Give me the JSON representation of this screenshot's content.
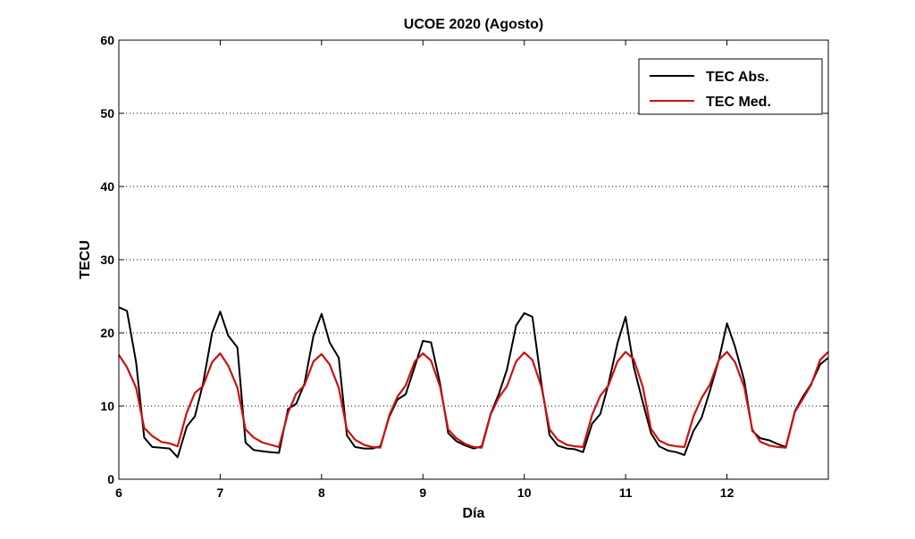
{
  "chart_data": {
    "type": "line",
    "title": "UCOE 2020 (Agosto)",
    "xlabel": "Día",
    "ylabel": "TECU",
    "xlim": [
      6,
      13
    ],
    "ylim": [
      0,
      60
    ],
    "xticks": [
      6,
      7,
      8,
      9,
      10,
      11,
      12
    ],
    "yticks": [
      0,
      10,
      20,
      30,
      40,
      50,
      60
    ],
    "grid": "horizontal dotted",
    "legend_position": "top-right",
    "series": [
      {
        "name": "TEC Abs.",
        "color": "#000000",
        "x": [
          6.0,
          6.08,
          6.17,
          6.25,
          6.33,
          6.42,
          6.5,
          6.58,
          6.67,
          6.75,
          6.83,
          6.92,
          7.0,
          7.08,
          7.17,
          7.25,
          7.33,
          7.42,
          7.5,
          7.58,
          7.67,
          7.75,
          7.83,
          7.92,
          8.0,
          8.08,
          8.17,
          8.25,
          8.33,
          8.42,
          8.5,
          8.58,
          8.67,
          8.75,
          8.83,
          8.92,
          9.0,
          9.08,
          9.17,
          9.25,
          9.33,
          9.42,
          9.5,
          9.58,
          9.67,
          9.75,
          9.83,
          9.92,
          10.0,
          10.08,
          10.17,
          10.25,
          10.33,
          10.42,
          10.5,
          10.58,
          10.67,
          10.75,
          10.83,
          10.92,
          11.0,
          11.08,
          11.17,
          11.25,
          11.33,
          11.42,
          11.5,
          11.58,
          11.67,
          11.75,
          11.83,
          11.92,
          12.0,
          12.08,
          12.17,
          12.25,
          12.33,
          12.42,
          12.5,
          12.58,
          12.67,
          12.75,
          12.83,
          12.92,
          13.0
        ],
        "y": [
          23.5,
          23.0,
          16.0,
          5.7,
          4.4,
          4.3,
          4.2,
          3.0,
          7.2,
          8.6,
          13.0,
          20.0,
          22.9,
          19.6,
          18.0,
          5.0,
          4.0,
          3.8,
          3.7,
          3.6,
          9.6,
          10.3,
          13.0,
          19.6,
          22.6,
          18.7,
          16.6,
          6.0,
          4.4,
          4.2,
          4.2,
          4.5,
          8.6,
          10.9,
          11.6,
          15.4,
          18.9,
          18.7,
          13.0,
          6.3,
          5.2,
          4.6,
          4.2,
          4.5,
          9.0,
          11.7,
          15.0,
          21.0,
          22.7,
          22.2,
          13.0,
          6.0,
          4.6,
          4.2,
          4.1,
          3.7,
          7.6,
          8.9,
          13.0,
          18.6,
          22.2,
          15.4,
          10.5,
          6.3,
          4.5,
          3.9,
          3.7,
          3.3,
          6.6,
          8.4,
          12.0,
          16.3,
          21.3,
          18.1,
          13.5,
          6.6,
          5.6,
          5.3,
          4.8,
          4.4,
          9.3,
          11.3,
          13.0,
          15.7,
          16.6
        ]
      },
      {
        "name": "TEC Med.",
        "color": "#cc1111",
        "x": [
          6.0,
          6.08,
          6.17,
          6.25,
          6.33,
          6.42,
          6.5,
          6.58,
          6.67,
          6.75,
          6.83,
          6.92,
          7.0,
          7.08,
          7.17,
          7.25,
          7.33,
          7.42,
          7.5,
          7.58,
          7.67,
          7.75,
          7.83,
          7.92,
          8.0,
          8.08,
          8.17,
          8.25,
          8.33,
          8.42,
          8.5,
          8.58,
          8.67,
          8.75,
          8.83,
          8.92,
          9.0,
          9.08,
          9.17,
          9.25,
          9.33,
          9.42,
          9.5,
          9.58,
          9.67,
          9.75,
          9.83,
          9.92,
          10.0,
          10.08,
          10.17,
          10.25,
          10.33,
          10.42,
          10.5,
          10.58,
          10.67,
          10.75,
          10.83,
          10.92,
          11.0,
          11.08,
          11.17,
          11.25,
          11.33,
          11.42,
          11.5,
          11.58,
          11.67,
          11.75,
          11.83,
          11.92,
          12.0,
          12.08,
          12.17,
          12.25,
          12.33,
          12.42,
          12.5,
          12.58,
          12.67,
          12.75,
          12.83,
          12.92,
          13.0
        ],
        "y": [
          17.0,
          15.3,
          12.5,
          7.0,
          5.9,
          5.1,
          4.9,
          4.5,
          9.1,
          11.8,
          12.7,
          16.0,
          17.2,
          15.5,
          12.5,
          6.8,
          5.7,
          5.0,
          4.7,
          4.4,
          9.1,
          11.7,
          12.8,
          16.1,
          17.1,
          15.7,
          12.5,
          6.8,
          5.4,
          4.7,
          4.4,
          4.3,
          8.8,
          11.3,
          12.8,
          16.1,
          17.2,
          16.2,
          12.6,
          6.8,
          5.6,
          4.8,
          4.4,
          4.3,
          8.9,
          11.2,
          12.7,
          16.1,
          17.3,
          16.3,
          12.6,
          6.8,
          5.4,
          4.7,
          4.5,
          4.4,
          8.8,
          11.4,
          12.8,
          16.1,
          17.4,
          16.4,
          12.6,
          6.9,
          5.3,
          4.7,
          4.5,
          4.4,
          8.6,
          11.1,
          12.9,
          16.3,
          17.4,
          16.0,
          12.6,
          6.8,
          5.1,
          4.6,
          4.4,
          4.3,
          9.2,
          11.0,
          12.9,
          16.3,
          17.4
        ]
      }
    ]
  }
}
